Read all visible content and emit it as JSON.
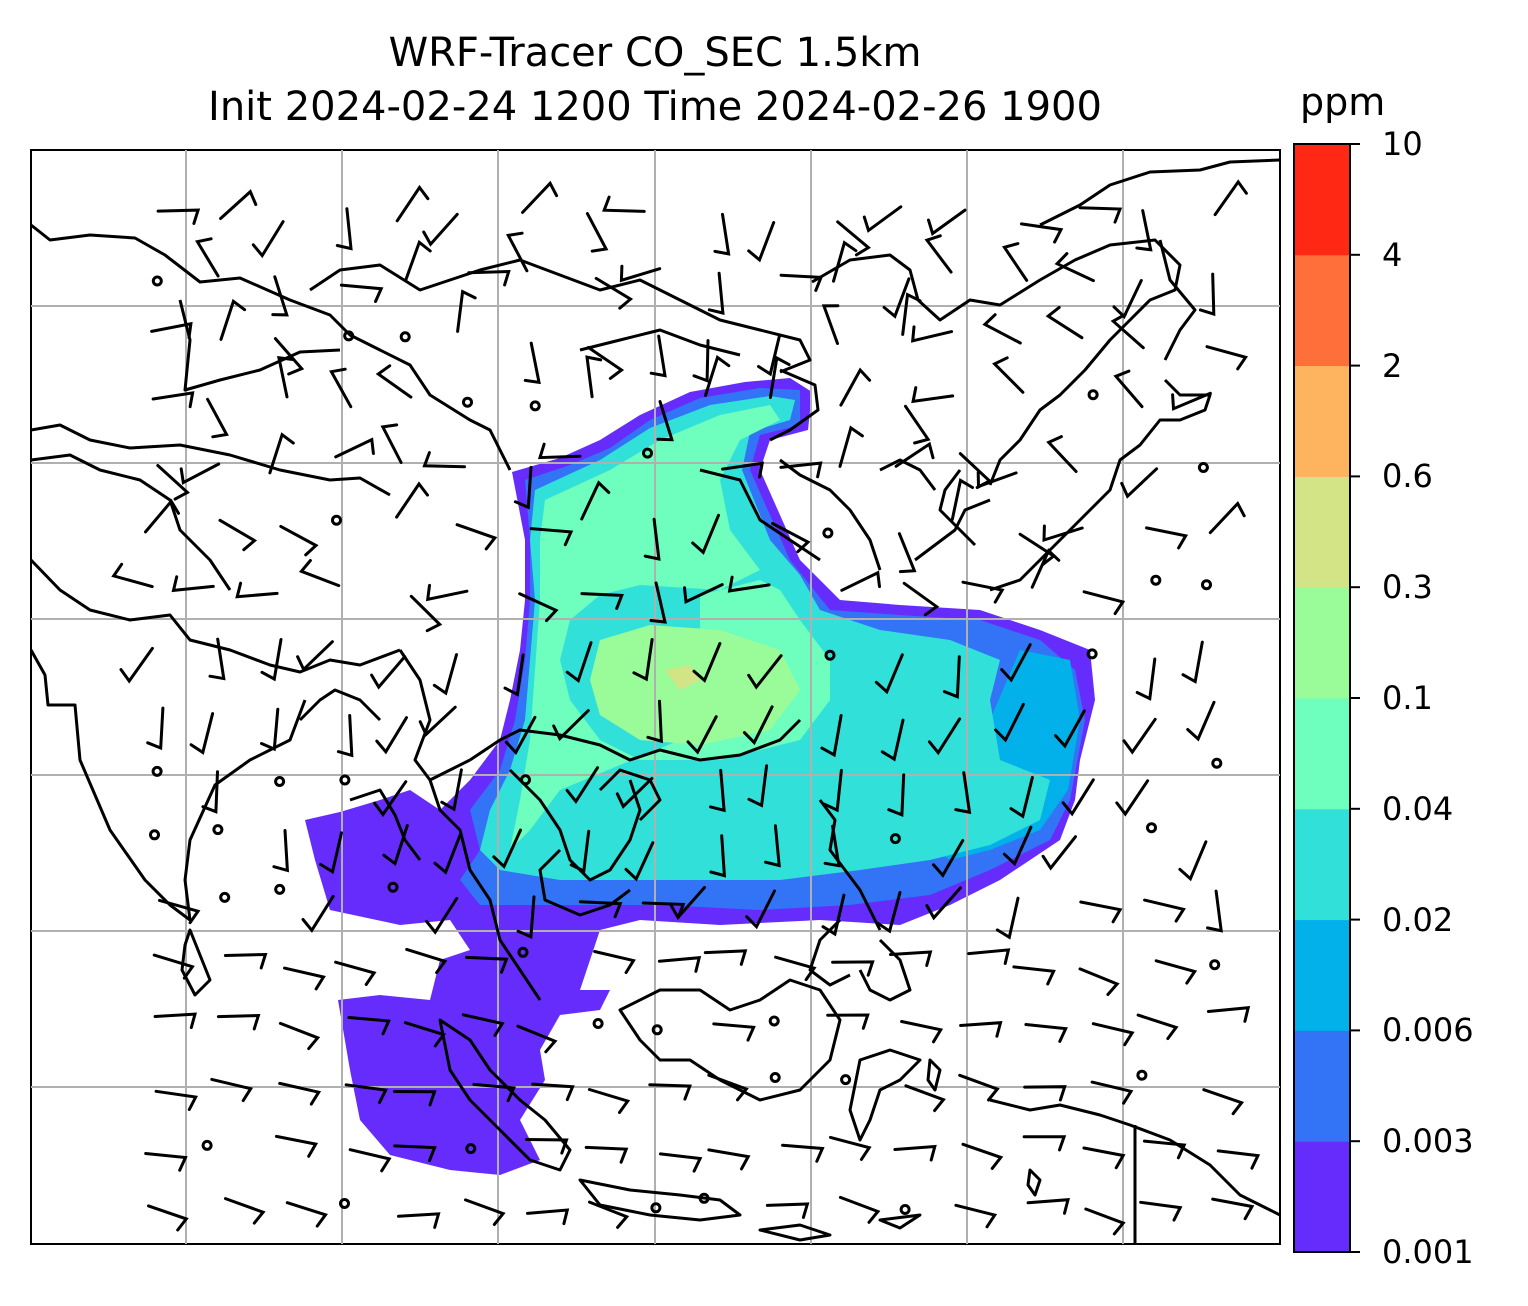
{
  "title": {
    "line1": "WRF-Tracer CO_SEC 1.5km",
    "line2": "Init 2024-02-24 1200 Time 2024-02-26 1900"
  },
  "colorbar": {
    "unit": "ppm",
    "levels": [
      "0.001",
      "0.003",
      "0.006",
      "0.02",
      "0.04",
      "0.1",
      "0.3",
      "0.6",
      "2",
      "4",
      "10"
    ],
    "colors": [
      "#652cfc",
      "#3373f5",
      "#02b1e9",
      "#31e1d9",
      "#6efebe",
      "#9afb99",
      "#d2e486",
      "#feb45f",
      "#fe6f3a",
      "#fe2815"
    ]
  },
  "map": {
    "gridlines": true,
    "barb_color": "#000000",
    "grid_color": "#b0b0b0"
  }
}
